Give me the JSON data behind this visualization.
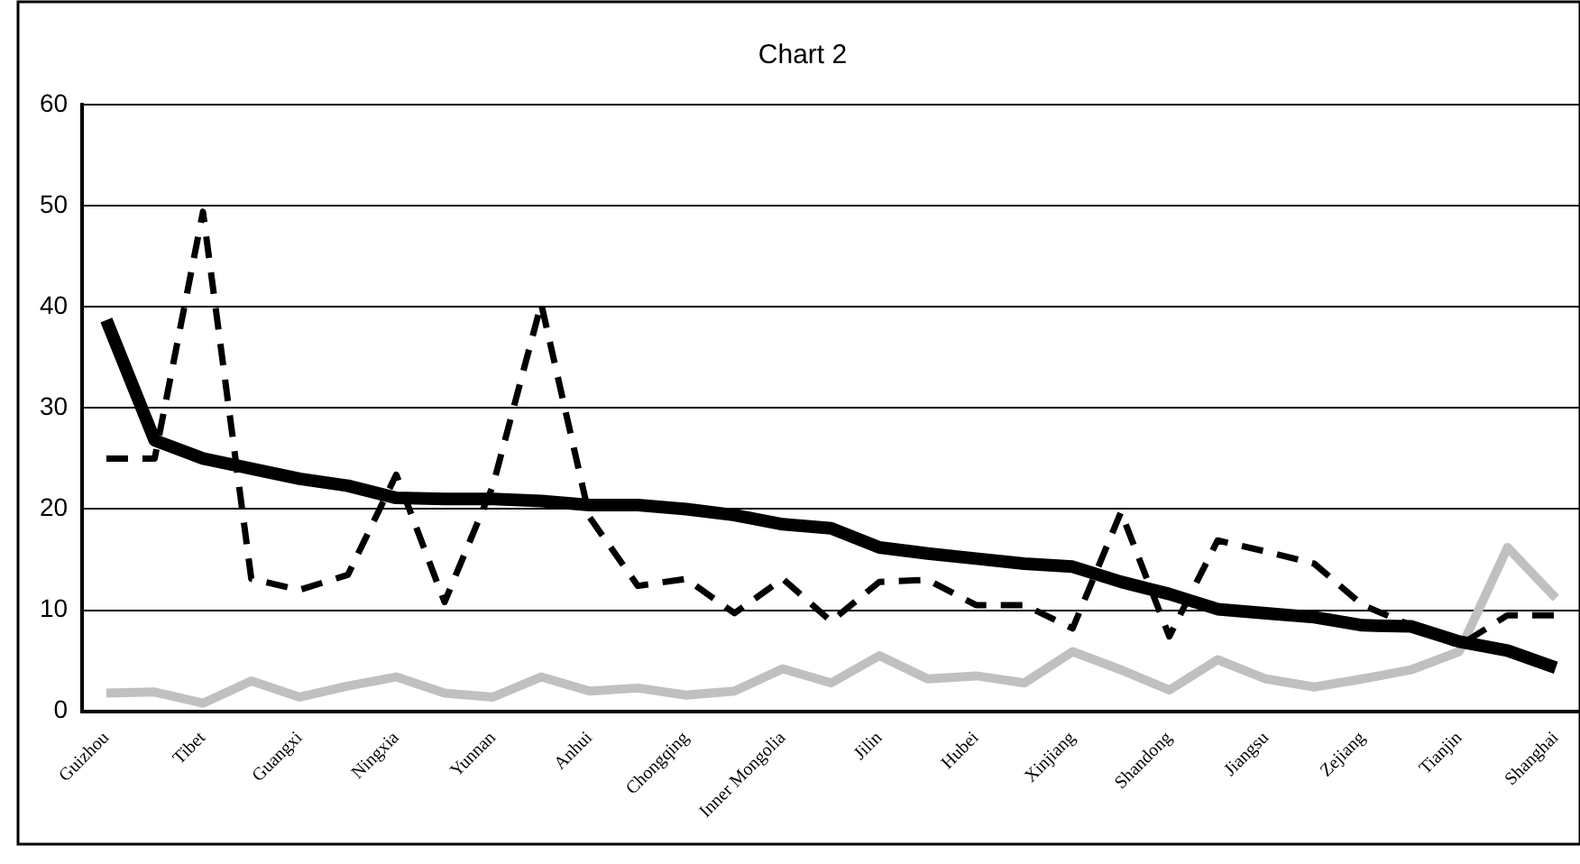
{
  "chart_data": {
    "type": "line",
    "title": "Chart 2",
    "categories": [
      "Guizhou",
      null,
      "Tibet",
      null,
      "Guangxi",
      null,
      "Ningxia",
      null,
      "Yunnan",
      null,
      "Anhui",
      null,
      "Chongqing",
      null,
      "Inner Mongolia",
      null,
      "Jilin",
      null,
      "Hubei",
      null,
      "Xinjiang",
      null,
      "Shandong",
      null,
      "Jiangsu",
      null,
      "Zejiang",
      null,
      "Tianjin",
      null,
      "Shanghai"
    ],
    "series": [
      {
        "color": "#000000",
        "line_style": "solid",
        "values": [
          38.7,
          26.8,
          25,
          24,
          23,
          22.3,
          21.1,
          21,
          21,
          20.8,
          20.4,
          20.4,
          20,
          19.4,
          18.5,
          18.1,
          16.2,
          15.6,
          15.1,
          14.6,
          14.3,
          12.8,
          11.6,
          10.1,
          9.7,
          9.3,
          8.5,
          8.4,
          6.9,
          6,
          4.3
        ]
      },
      {
        "color": "#000000",
        "line_style": "dashed",
        "values": [
          25,
          25,
          49.4,
          13.1,
          12,
          13.5,
          23.4,
          10.8,
          22.3,
          40.3,
          19.2,
          12.4,
          13.1,
          9.7,
          13.1,
          8.9,
          12.8,
          13,
          10.5,
          10.5,
          8.2,
          19.7,
          7.4,
          16.9,
          15.8,
          14.6,
          10.5,
          8.5,
          6.5,
          9.5,
          9.5
        ]
      },
      {
        "color": "#c0c0c0",
        "line_style": "solid",
        "values": [
          1.8,
          1.9,
          0.8,
          3,
          1.4,
          2.5,
          3.4,
          1.8,
          1.4,
          3.4,
          2,
          2.3,
          1.6,
          2,
          4.2,
          2.8,
          5.5,
          3.2,
          3.5,
          2.8,
          5.9,
          4.1,
          2.1,
          5.1,
          3.2,
          2.4,
          3.2,
          4.1,
          5.9,
          16.2,
          11.2
        ]
      }
    ],
    "ylim": [
      0,
      60
    ],
    "yticks": [
      0,
      10,
      20,
      30,
      40,
      50,
      60
    ],
    "grid": "y",
    "legend": false,
    "marker": "none"
  }
}
